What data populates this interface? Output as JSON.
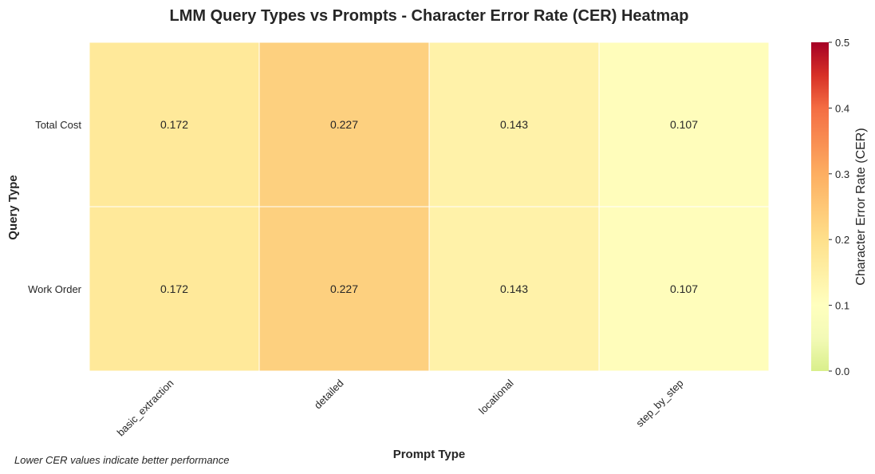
{
  "chart_data": {
    "type": "heatmap",
    "title": "LMM Query Types vs Prompts - Character Error Rate (CER) Heatmap",
    "xlabel": "Prompt Type",
    "ylabel": "Query Type",
    "x_categories": [
      "basic_extraction",
      "detailed",
      "locational",
      "step_by_step"
    ],
    "y_categories": [
      "Total Cost",
      "Work Order"
    ],
    "values": [
      [
        0.172,
        0.227,
        0.143,
        0.107
      ],
      [
        0.172,
        0.227,
        0.143,
        0.107
      ]
    ],
    "value_range": [
      0.0,
      0.5
    ],
    "colormap": "RdYlGn_r",
    "colorbar": {
      "label": "Character Error Rate (CER)",
      "ticks": [
        "0.0",
        "0.1",
        "0.2",
        "0.3",
        "0.4",
        "0.5"
      ]
    },
    "footnote": "Lower CER values indicate better performance"
  }
}
